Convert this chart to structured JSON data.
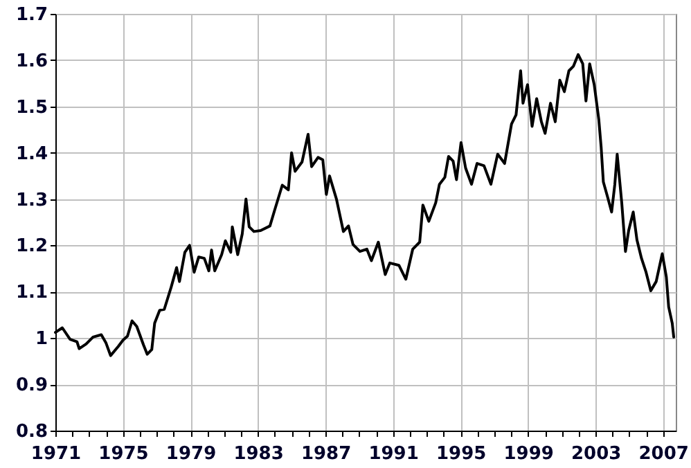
{
  "chart_data": {
    "type": "line",
    "xlim": [
      1971,
      2007.75
    ],
    "ylim": [
      0.8,
      1.7
    ],
    "xticks": [
      1971,
      {
        "value": 1972,
        "label": null
      },
      {
        "value": 1973,
        "label": null
      },
      {
        "value": 1974,
        "label": null
      },
      1975,
      {
        "value": 1976,
        "label": null
      },
      {
        "value": 1977,
        "label": null
      },
      {
        "value": 1978,
        "label": null
      },
      1979,
      {
        "value": 1980,
        "label": null
      },
      {
        "value": 1981,
        "label": null
      },
      {
        "value": 1982,
        "label": null
      },
      1983,
      {
        "value": 1984,
        "label": null
      },
      {
        "value": 1985,
        "label": null
      },
      {
        "value": 1986,
        "label": null
      },
      1987,
      {
        "value": 1988,
        "label": null
      },
      {
        "value": 1989,
        "label": null
      },
      {
        "value": 1990,
        "label": null
      },
      1991,
      {
        "value": 1992,
        "label": null
      },
      {
        "value": 1993,
        "label": null
      },
      {
        "value": 1994,
        "label": null
      },
      1995,
      {
        "value": 1996,
        "label": null
      },
      {
        "value": 1997,
        "label": null
      },
      {
        "value": 1998,
        "label": null
      },
      1999,
      {
        "value": 2000,
        "label": null
      },
      {
        "value": 2001,
        "label": null
      },
      {
        "value": 2002,
        "label": null
      },
      2003,
      {
        "value": 2004,
        "label": null
      },
      {
        "value": 2005,
        "label": null
      },
      {
        "value": 2006,
        "label": null
      },
      2007
    ],
    "yticks": [
      0.8,
      0.9,
      1,
      1.1,
      1.2,
      1.3,
      1.4,
      1.5,
      1.6,
      1.7
    ],
    "grid": true,
    "marker": "none",
    "line_style": "solid",
    "x": [
      1971.0,
      1971.41,
      1971.87,
      1972.28,
      1972.41,
      1972.82,
      1973.23,
      1973.72,
      1973.99,
      1974.27,
      1974.73,
      1975.0,
      1975.27,
      1975.54,
      1975.82,
      1976.22,
      1976.44,
      1976.71,
      1976.88,
      1977.18,
      1977.45,
      1977.86,
      1978.18,
      1978.35,
      1978.67,
      1978.95,
      1979.22,
      1979.49,
      1979.82,
      1980.09,
      1980.25,
      1980.44,
      1980.85,
      1981.07,
      1981.39,
      1981.48,
      1981.8,
      1982.07,
      1982.29,
      1982.48,
      1982.76,
      1983.16,
      1983.71,
      1983.98,
      1984.44,
      1984.8,
      1984.99,
      1985.2,
      1985.61,
      1985.97,
      1986.18,
      1986.56,
      1986.84,
      1987.05,
      1987.24,
      1987.65,
      1988.06,
      1988.36,
      1988.63,
      1989.04,
      1989.45,
      1989.72,
      1990.13,
      1990.54,
      1990.81,
      1991.35,
      1991.76,
      1992.17,
      1992.58,
      1992.77,
      1993.12,
      1993.53,
      1993.75,
      1994.07,
      1994.29,
      1994.56,
      1994.76,
      1995.03,
      1995.3,
      1995.65,
      1995.98,
      1996.39,
      1996.8,
      1997.2,
      1997.61,
      1998.02,
      1998.29,
      1998.56,
      1998.7,
      1998.97,
      1999.24,
      1999.51,
      1999.79,
      2000.01,
      2000.33,
      2000.61,
      2000.88,
      2001.15,
      2001.42,
      2001.69,
      2001.97,
      2002.24,
      2002.43,
      2002.65,
      2002.92,
      2003.19,
      2003.33,
      2003.46,
      2003.73,
      2003.95,
      2004.14,
      2004.28,
      2004.55,
      2004.77,
      2004.96,
      2005.23,
      2005.45,
      2005.72,
      2005.99,
      2006.27,
      2006.59,
      2006.95,
      2007.19,
      2007.33,
      2007.54,
      2007.63
    ],
    "series": [
      {
        "color": "#000000",
        "values": [
          1.012,
          1.022,
          0.997,
          0.992,
          0.977,
          0.987,
          1.002,
          1.007,
          0.99,
          0.962,
          0.982,
          0.995,
          1.004,
          1.037,
          1.025,
          0.985,
          0.965,
          0.975,
          1.032,
          1.06,
          1.062,
          1.11,
          1.152,
          1.122,
          1.185,
          1.2,
          1.142,
          1.175,
          1.172,
          1.145,
          1.19,
          1.145,
          1.18,
          1.21,
          1.185,
          1.24,
          1.18,
          1.225,
          1.3,
          1.24,
          1.23,
          1.232,
          1.242,
          1.275,
          1.33,
          1.32,
          1.4,
          1.36,
          1.38,
          1.44,
          1.37,
          1.39,
          1.385,
          1.31,
          1.35,
          1.3,
          1.23,
          1.242,
          1.202,
          1.187,
          1.192,
          1.167,
          1.207,
          1.137,
          1.162,
          1.157,
          1.127,
          1.192,
          1.207,
          1.287,
          1.252,
          1.292,
          1.332,
          1.347,
          1.392,
          1.382,
          1.342,
          1.422,
          1.367,
          1.332,
          1.377,
          1.372,
          1.332,
          1.397,
          1.377,
          1.462,
          1.482,
          1.577,
          1.507,
          1.547,
          1.457,
          1.517,
          1.467,
          1.442,
          1.507,
          1.467,
          1.557,
          1.532,
          1.577,
          1.587,
          1.612,
          1.592,
          1.512,
          1.592,
          1.547,
          1.472,
          1.412,
          1.337,
          1.302,
          1.272,
          1.332,
          1.397,
          1.292,
          1.187,
          1.232,
          1.272,
          1.212,
          1.172,
          1.142,
          1.102,
          1.122,
          1.182,
          1.132,
          1.067,
          1.032,
          1.002
        ]
      }
    ]
  }
}
